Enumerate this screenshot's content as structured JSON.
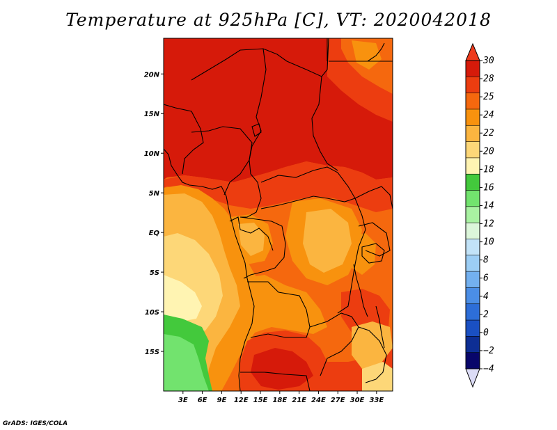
{
  "title": "Temperature at 925hPa [C], VT: 2020042018",
  "credit": "GrADS: IGES/COLA",
  "map": {
    "lon_range": [
      0,
      35.5
    ],
    "lat_range": [
      -20,
      24.5
    ],
    "x_ticks": [
      {
        "lon": 3,
        "label": "3E"
      },
      {
        "lon": 6,
        "label": "6E"
      },
      {
        "lon": 9,
        "label": "9E"
      },
      {
        "lon": 12,
        "label": "12E"
      },
      {
        "lon": 15,
        "label": "15E"
      },
      {
        "lon": 18,
        "label": "18E"
      },
      {
        "lon": 21,
        "label": "21E"
      },
      {
        "lon": 24,
        "label": "24E"
      },
      {
        "lon": 27,
        "label": "27E"
      },
      {
        "lon": 30,
        "label": "30E"
      },
      {
        "lon": 33,
        "label": "33E"
      }
    ],
    "y_ticks": [
      {
        "lat": 20,
        "label": "20N"
      },
      {
        "lat": 15,
        "label": "15N"
      },
      {
        "lat": 10,
        "label": "10N"
      },
      {
        "lat": 5,
        "label": "5N"
      },
      {
        "lat": 0,
        "label": "EQ"
      },
      {
        "lat": -5,
        "label": "5S"
      },
      {
        "lat": -10,
        "label": "10S"
      },
      {
        "lat": -15,
        "label": "15S"
      }
    ]
  },
  "colorbar": {
    "labels": [
      "30",
      "28",
      "25",
      "24",
      "22",
      "20",
      "18",
      "16",
      "14",
      "12",
      "10",
      "8",
      "6",
      "4",
      "2",
      "0",
      "−2",
      "−4"
    ],
    "colors": {
      "c_top": "#ed3a1c",
      "c_gt30": "#d61a0a",
      "c_28": "#ec3d10",
      "c_25": "#f5680e",
      "c_24": "#f8920e",
      "c_22": "#fbb540",
      "c_20": "#fdd778",
      "c_18": "#fff4b2",
      "c_16": "#43c93c",
      "c_14": "#72e36e",
      "c_12": "#a9f2a2",
      "c_10": "#dcf6da",
      "c_8": "#c2e3f8",
      "c_6": "#9ccef5",
      "c_4": "#73b0ef",
      "c_2": "#4b8ee6",
      "c_0": "#2d6ed8",
      "c_m2": "#1a50c3",
      "c_m4": "#0d2e94",
      "c_bottom_a": "#08066a",
      "c_bottom_b": "#dcdcf6"
    }
  },
  "field_colors": {
    "hot": "#d61a0a",
    "t28": "#ec3d10",
    "t25": "#f5680e",
    "t24": "#f8920e",
    "t22": "#fbb540",
    "t20": "#fdd778",
    "t18": "#fff4b2",
    "t16": "#43c93c",
    "t14": "#72e36e",
    "line": "#000000"
  }
}
